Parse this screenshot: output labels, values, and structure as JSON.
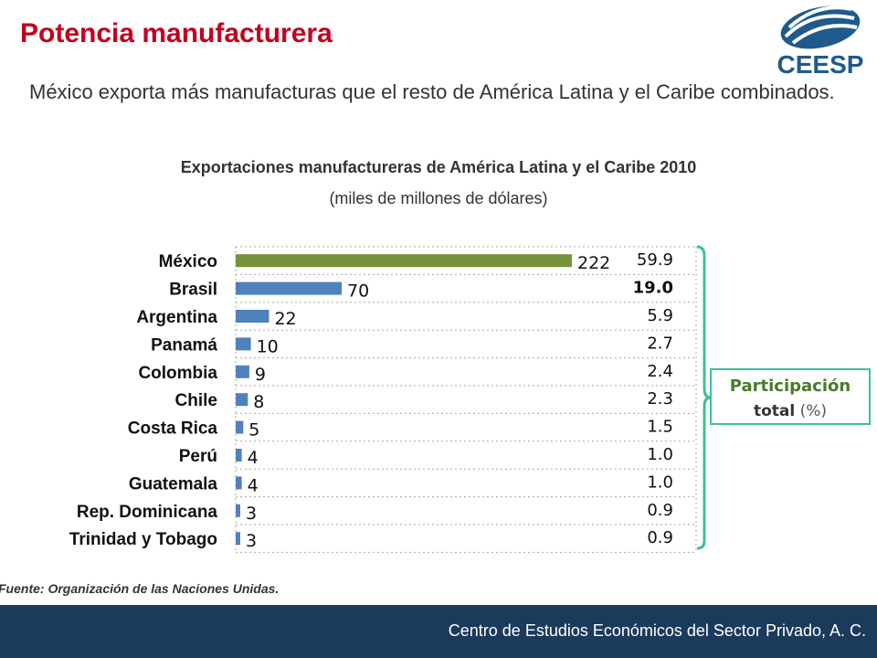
{
  "header": {
    "title": "Potencia manufacturera",
    "logo": "CEESP",
    "lead": "México exporta más manufacturas que el resto de América Latina y el Caribe combinados."
  },
  "chart_data": {
    "type": "bar",
    "orientation": "horizontal",
    "title": "Exportaciones manufactureras de América Latina y el Caribe 2010",
    "subtitle": "(miles de millones de dólares)",
    "categories": [
      "México",
      "Brasil",
      "Argentina",
      "Panamá",
      "Colombia",
      "Chile",
      "Costa Rica",
      "Perú",
      "Guatemala",
      "Rep. Dominicana",
      "Trinidad y Tobago"
    ],
    "values": [
      222,
      70,
      22,
      10,
      9,
      8,
      5,
      4,
      4,
      3,
      3
    ],
    "colors": [
      "#77933c",
      "#4f81bd",
      "#4f81bd",
      "#4f81bd",
      "#4f81bd",
      "#4f81bd",
      "#4f81bd",
      "#4f81bd",
      "#4f81bd",
      "#4f81bd",
      "#4f81bd"
    ],
    "shares": [
      59.9,
      {
        "value": 19,
        "label": "19.0"
      },
      5.9,
      2.7,
      2.4,
      2.3,
      1.5,
      {
        "value": 1,
        "label": "1.0"
      },
      {
        "value": 1,
        "label": "1.0"
      },
      0.9,
      0.9
    ],
    "callout": {
      "lines": [
        "Participación",
        "total"
      ],
      "unit": "(%)"
    }
  },
  "footer": {
    "source": "Fuente: Organización de las Naciones Unidas.",
    "org": "Centro de Estudios Económicos del Sector Privado, A. C."
  }
}
